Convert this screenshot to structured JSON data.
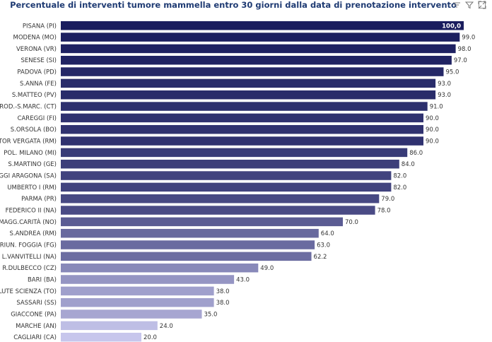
{
  "toolbar": {
    "icons": [
      "filter-lines-icon",
      "filter-icon",
      "expand-icon"
    ]
  },
  "chart_data": {
    "type": "bar",
    "orientation": "horizontal",
    "title": "Percentuale di interventi tumore mammella entro 30 giorni dalla data di prenotazione intervento",
    "categories": [
      "PISANA (PI)",
      "MODENA (MO)",
      "VERONA (VR)",
      "SENESE (SI)",
      "PADOVA (PD)",
      "S.ANNA (FE)",
      "S.MATTEO (PV)",
      "ROD.-S.MARC. (CT)",
      "CAREGGI (FI)",
      "S.ORSOLA (BO)",
      "TOR VERGATA (RM)",
      "POL. MILANO (MI)",
      "S.MARTINO (GE)",
      "UGGI ARAGONA (SA)",
      "UMBERTO I (RM)",
      "PARMA (PR)",
      "FEDERICO II (NA)",
      "MAGG.CARITÀ (NO)",
      "S.ANDREA (RM)",
      "RIUN. FOGGIA (FG)",
      "L.VANVITELLI (NA)",
      "R.DULBECCO (CZ)",
      "BARI (BA)",
      "ALUTE SCIENZA (TO)",
      "SASSARI (SS)",
      "GIACCONE (PA)",
      "MARCHE (AN)",
      "CAGLIARI (CA)"
    ],
    "values": [
      100.0,
      99.0,
      98.0,
      97.0,
      95.0,
      93.0,
      93.0,
      91.0,
      90.0,
      90.0,
      90.0,
      86.0,
      84.0,
      82.0,
      82.0,
      79.0,
      78.0,
      70.0,
      64.0,
      63.0,
      62.2,
      49.0,
      43.0,
      38.0,
      38.0,
      35.0,
      24.0,
      20.0
    ],
    "value_labels": [
      "100,0",
      "99.0",
      "98.0",
      "97.0",
      "95.0",
      "93.0",
      "93.0",
      "91.0",
      "90.0",
      "90.0",
      "90.0",
      "86.0",
      "84.0",
      "82.0",
      "82.0",
      "79.0",
      "78.0",
      "70.0",
      "64.0",
      "63.0",
      "62.2",
      "49.0",
      "43.0",
      "38.0",
      "38.0",
      "35.0",
      "24.0",
      "20.0"
    ],
    "xlim": [
      0,
      100
    ],
    "grid": false,
    "legend": "none",
    "colors": {
      "high": "#1a1d5e",
      "low": "#c7c6ec",
      "label": "#333333",
      "title": "#1f3b73",
      "max_value_label": "#ffffff"
    }
  }
}
